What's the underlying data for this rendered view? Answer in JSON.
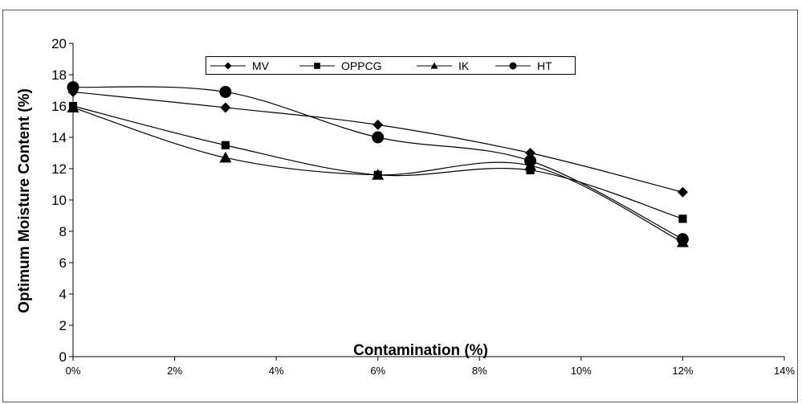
{
  "chart_data": {
    "type": "line",
    "title": "",
    "xlabel": "Contamination (%)",
    "ylabel": "Optimum Moisture Content (%)",
    "x": [
      0,
      3,
      6,
      9,
      12
    ],
    "xlim": [
      0,
      14
    ],
    "ylim": [
      0,
      20
    ],
    "x_ticks": [
      "0%",
      "2%",
      "4%",
      "6%",
      "8%",
      "10%",
      "12%",
      "14%"
    ],
    "y_ticks": [
      "0",
      "2",
      "4",
      "6",
      "8",
      "10",
      "12",
      "14",
      "16",
      "18",
      "20"
    ],
    "smoothed": true,
    "grid": false,
    "legend_position": "top-center",
    "series": [
      {
        "name": "MV",
        "marker": "diamond",
        "values": [
          16.9,
          15.9,
          14.8,
          13.0,
          10.5
        ]
      },
      {
        "name": "OPPCG",
        "marker": "square",
        "values": [
          16.0,
          13.5,
          11.6,
          11.9,
          8.8
        ]
      },
      {
        "name": "IK",
        "marker": "triangle",
        "values": [
          15.9,
          12.7,
          11.6,
          12.2,
          7.3
        ]
      },
      {
        "name": "HT",
        "marker": "circle",
        "values": [
          17.2,
          16.9,
          14.0,
          12.5,
          7.5
        ]
      }
    ],
    "colors": {
      "line": "#000000",
      "frame": "#555555",
      "background": "#ffffff"
    }
  }
}
